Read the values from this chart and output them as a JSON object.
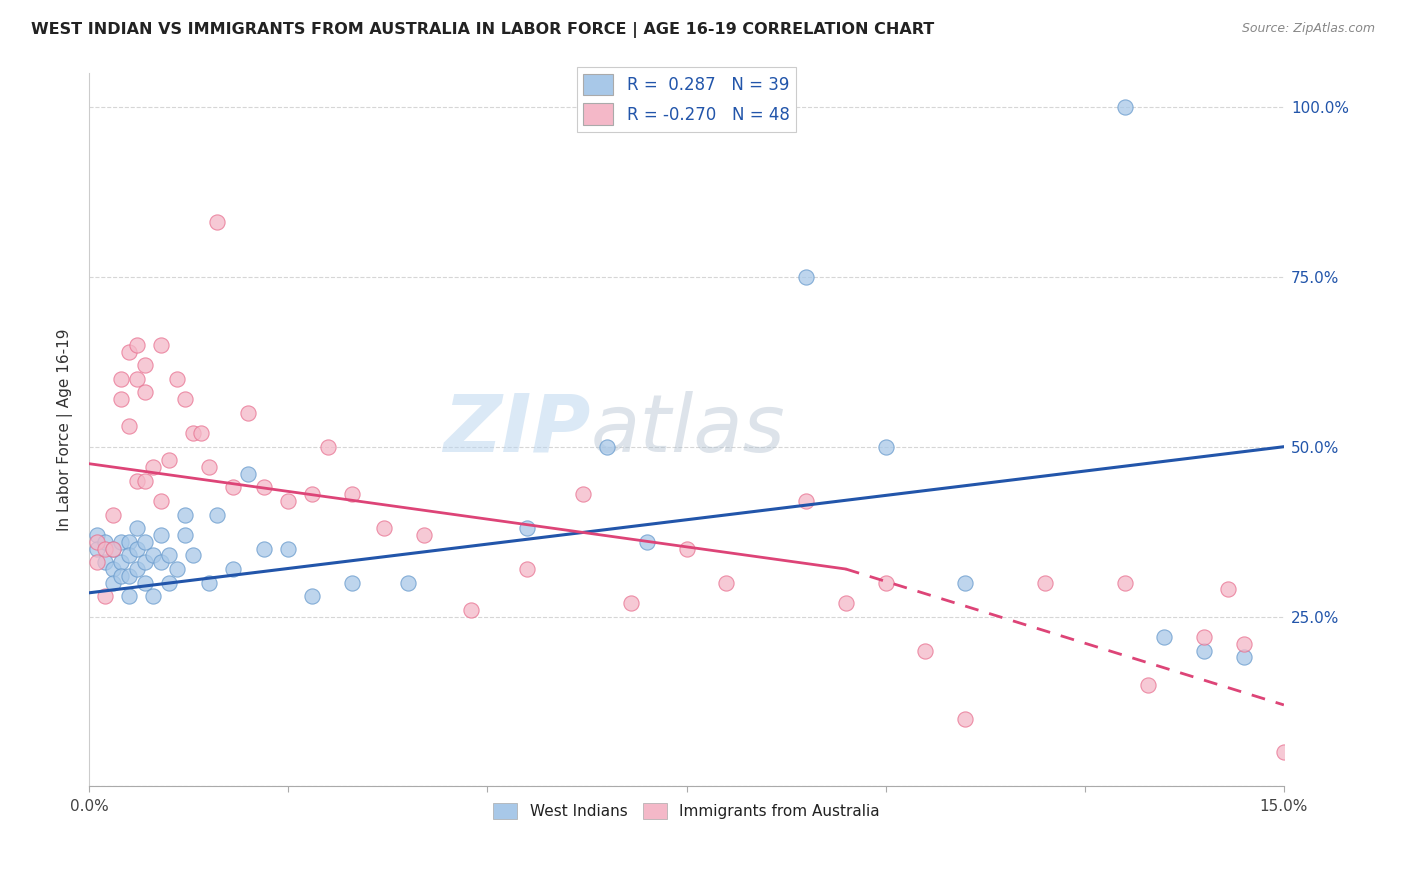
{
  "title": "WEST INDIAN VS IMMIGRANTS FROM AUSTRALIA IN LABOR FORCE | AGE 16-19 CORRELATION CHART",
  "source": "Source: ZipAtlas.com",
  "ylabel": "In Labor Force | Age 16-19",
  "xlim": [
    0.0,
    0.15
  ],
  "ylim": [
    0.0,
    1.05
  ],
  "blue_color": "#a8c8e8",
  "blue_edge_color": "#6699cc",
  "pink_color": "#f4b8c8",
  "pink_edge_color": "#e87090",
  "blue_line_color": "#2255aa",
  "pink_line_color": "#dd4477",
  "watermark_zip": "ZIP",
  "watermark_atlas": "atlas",
  "west_indians_x": [
    0.001,
    0.001,
    0.002,
    0.002,
    0.003,
    0.003,
    0.003,
    0.004,
    0.004,
    0.004,
    0.005,
    0.005,
    0.005,
    0.005,
    0.006,
    0.006,
    0.006,
    0.007,
    0.007,
    0.007,
    0.008,
    0.008,
    0.009,
    0.009,
    0.01,
    0.01,
    0.011,
    0.012,
    0.012,
    0.013,
    0.015,
    0.016,
    0.018,
    0.02,
    0.022,
    0.025,
    0.028,
    0.033,
    0.04,
    0.055,
    0.065,
    0.07,
    0.09,
    0.1,
    0.11,
    0.13,
    0.135,
    0.14,
    0.145
  ],
  "west_indians_y": [
    0.37,
    0.35,
    0.36,
    0.33,
    0.35,
    0.32,
    0.3,
    0.36,
    0.33,
    0.31,
    0.36,
    0.34,
    0.31,
    0.28,
    0.38,
    0.35,
    0.32,
    0.36,
    0.33,
    0.3,
    0.34,
    0.28,
    0.37,
    0.33,
    0.34,
    0.3,
    0.32,
    0.4,
    0.37,
    0.34,
    0.3,
    0.4,
    0.32,
    0.46,
    0.35,
    0.35,
    0.28,
    0.3,
    0.3,
    0.38,
    0.5,
    0.36,
    0.75,
    0.5,
    0.3,
    1.0,
    0.22,
    0.2,
    0.19
  ],
  "australia_x": [
    0.001,
    0.001,
    0.002,
    0.002,
    0.003,
    0.003,
    0.004,
    0.004,
    0.005,
    0.005,
    0.006,
    0.006,
    0.006,
    0.007,
    0.007,
    0.007,
    0.008,
    0.009,
    0.009,
    0.01,
    0.011,
    0.012,
    0.013,
    0.014,
    0.015,
    0.016,
    0.018,
    0.02,
    0.022,
    0.025,
    0.028,
    0.03,
    0.033,
    0.037,
    0.042,
    0.048,
    0.055,
    0.062,
    0.068,
    0.075,
    0.08,
    0.09,
    0.095,
    0.1,
    0.105,
    0.11,
    0.12,
    0.13,
    0.133,
    0.14,
    0.143,
    0.145,
    0.15
  ],
  "australia_y": [
    0.36,
    0.33,
    0.35,
    0.28,
    0.4,
    0.35,
    0.6,
    0.57,
    0.64,
    0.53,
    0.45,
    0.65,
    0.6,
    0.62,
    0.58,
    0.45,
    0.47,
    0.42,
    0.65,
    0.48,
    0.6,
    0.57,
    0.52,
    0.52,
    0.47,
    0.83,
    0.44,
    0.55,
    0.44,
    0.42,
    0.43,
    0.5,
    0.43,
    0.38,
    0.37,
    0.26,
    0.32,
    0.43,
    0.27,
    0.35,
    0.3,
    0.42,
    0.27,
    0.3,
    0.2,
    0.1,
    0.3,
    0.3,
    0.15,
    0.22,
    0.29,
    0.21,
    0.05
  ],
  "blue_line_x0": 0.0,
  "blue_line_y0": 0.285,
  "blue_line_x1": 0.15,
  "blue_line_y1": 0.5,
  "pink_line_x0": 0.0,
  "pink_line_y0": 0.475,
  "pink_line_x1_solid": 0.095,
  "pink_line_y1_solid": 0.32,
  "pink_line_x1_dash": 0.15,
  "pink_line_y1_dash": 0.12
}
